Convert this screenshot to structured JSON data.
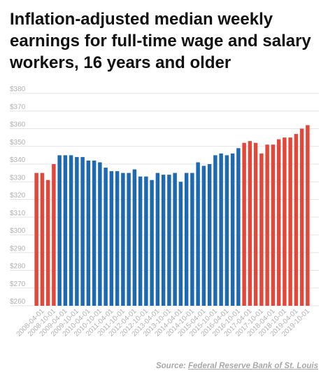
{
  "title": "Inflation-adjusted median weekly earnings for full-time wage and salary workers, 16 years and older",
  "source": {
    "prefix": "Source:",
    "link_text": "Federal Reserve Bank of St. Louis"
  },
  "colors": {
    "red": "#e2473a",
    "blue": "#1d69b3",
    "grid": "#e3e3e3",
    "axis_label": "#b0b0b0"
  },
  "chart_data": {
    "type": "bar",
    "title": "Inflation-adjusted median weekly earnings for full-time wage and salary workers, 16 years and older",
    "xlabel": "",
    "ylabel": "",
    "ylim": [
      260,
      380
    ],
    "yticks": [
      "$260",
      "$270",
      "$280",
      "$290",
      "$300",
      "$310",
      "$320",
      "$330",
      "$340",
      "$350",
      "$360",
      "$370",
      "$380"
    ],
    "grid": true,
    "legend": "none",
    "categories": [
      "2008-01-01",
      "2008-04-01",
      "2008-07-01",
      "2008-10-01",
      "2009-01-01",
      "2009-04-01",
      "2009-07-01",
      "2009-10-01",
      "2010-01-01",
      "2010-04-01",
      "2010-07-01",
      "2010-10-01",
      "2011-01-01",
      "2011-04-01",
      "2011-07-01",
      "2011-10-01",
      "2012-01-01",
      "2012-04-01",
      "2012-07-01",
      "2012-10-01",
      "2013-01-01",
      "2013-04-01",
      "2013-07-01",
      "2013-10-01",
      "2014-01-01",
      "2014-04-01",
      "2014-07-01",
      "2014-10-01",
      "2015-01-01",
      "2015-04-01",
      "2015-07-01",
      "2015-10-01",
      "2016-01-01",
      "2016-04-01",
      "2016-07-01",
      "2016-10-01",
      "2017-01-01",
      "2017-04-01",
      "2017-07-01",
      "2017-10-01",
      "2018-01-01",
      "2018-04-01",
      "2018-07-01",
      "2018-10-01",
      "2019-01-01",
      "2019-04-01",
      "2019-07-01",
      "2019-10-01"
    ],
    "shown_tick_labels": [
      "2008-04-01",
      "2008-10-01",
      "2009-04-01",
      "2009-10-01",
      "2010-04-01",
      "2010-10-01",
      "2011-04-01",
      "2011-10-01",
      "2012-04-01",
      "2012-10-01",
      "2013-04-01",
      "2013-10-01",
      "2014-04-01",
      "2014-10-01",
      "2015-04-01",
      "2015-10-01",
      "2016-04-01",
      "2016-10-01",
      "2017-04-01",
      "2017-10-01",
      "2018-04-01",
      "2018-10-01",
      "2019-04-01",
      "2019-10-01"
    ],
    "values": [
      335,
      335,
      331,
      340,
      345,
      345,
      345,
      344,
      344,
      342,
      342,
      341,
      338,
      336,
      336,
      335,
      335,
      337,
      333,
      333,
      331,
      335,
      334,
      334,
      335,
      330,
      335,
      335,
      341,
      339,
      340,
      345,
      346,
      345,
      346,
      349,
      352,
      353,
      352,
      346,
      351,
      351,
      354,
      355,
      355,
      357,
      360,
      362
    ],
    "bar_colors": [
      "red",
      "red",
      "red",
      "red",
      "blue",
      "blue",
      "blue",
      "blue",
      "blue",
      "blue",
      "blue",
      "blue",
      "blue",
      "blue",
      "blue",
      "blue",
      "blue",
      "blue",
      "blue",
      "blue",
      "blue",
      "blue",
      "blue",
      "blue",
      "blue",
      "blue",
      "blue",
      "blue",
      "blue",
      "blue",
      "blue",
      "blue",
      "blue",
      "blue",
      "blue",
      "blue",
      "red",
      "red",
      "red",
      "red",
      "red",
      "red",
      "red",
      "red",
      "red",
      "red",
      "red",
      "red"
    ]
  }
}
